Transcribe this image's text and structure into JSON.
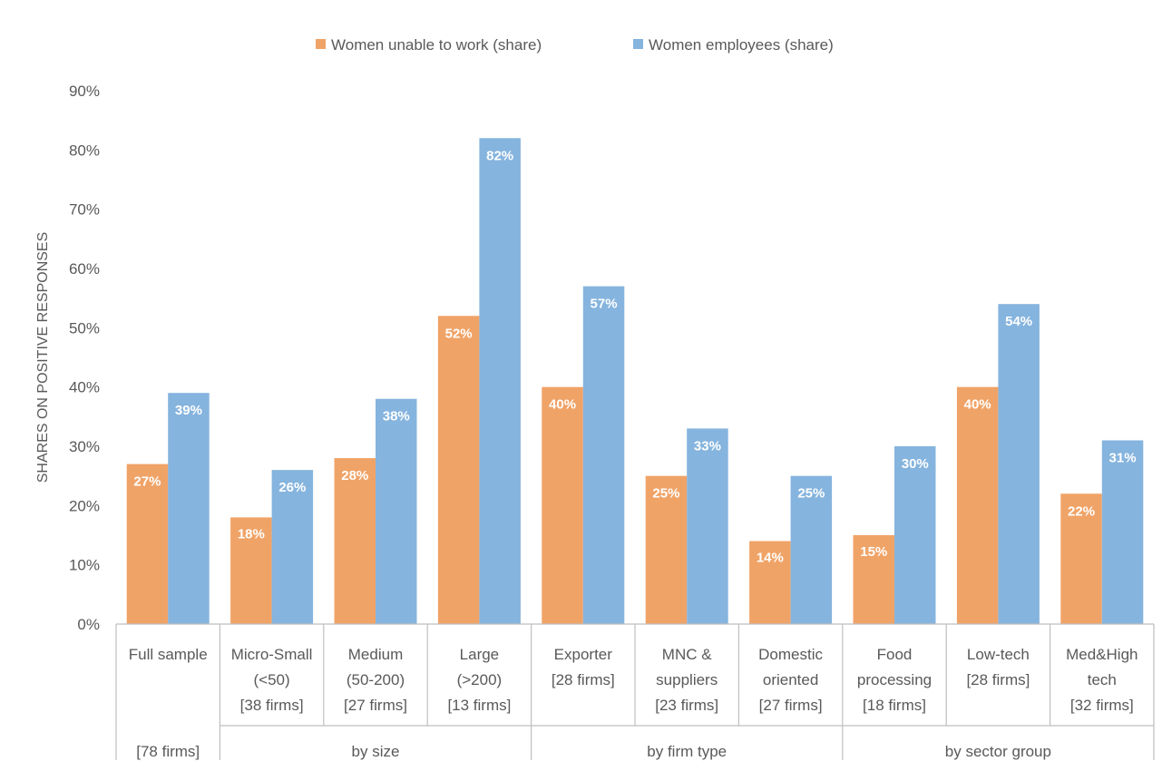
{
  "chart_data": {
    "type": "bar",
    "title": "",
    "ylabel": "SHARES ON POSITIVE RESPONSES",
    "xlabel": "",
    "ylim": [
      0,
      90
    ],
    "y_ticks": [
      "0%",
      "10%",
      "20%",
      "30%",
      "40%",
      "50%",
      "60%",
      "70%",
      "80%",
      "90%"
    ],
    "grid": false,
    "legend_position": "top",
    "categories": [
      [
        "Full sample",
        "",
        "",
        "[78 firms]"
      ],
      [
        "Micro-Small",
        "(<50)",
        "[38 firms]"
      ],
      [
        "Medium",
        "(50-200)",
        "[27 firms]"
      ],
      [
        "Large",
        "(>200)",
        "[13 firms]"
      ],
      [
        "Exporter",
        "[28 firms]"
      ],
      [
        "MNC &",
        "suppliers",
        "[23 firms]"
      ],
      [
        "Domestic",
        "oriented",
        "[27 firms]"
      ],
      [
        "Food",
        "processing",
        "[18 firms]"
      ],
      [
        "Low-tech",
        "[28 firms]"
      ],
      [
        "Med&High",
        "tech",
        "[32 firms]"
      ]
    ],
    "groups": [
      {
        "label": "",
        "start": 0,
        "end": 0
      },
      {
        "label": "by size",
        "start": 1,
        "end": 3
      },
      {
        "label": "by firm type",
        "start": 4,
        "end": 6
      },
      {
        "label": "by sector group",
        "start": 7,
        "end": 9
      }
    ],
    "series": [
      {
        "name": "Women unable to work (share)",
        "color": "#f0a367",
        "values": [
          27,
          18,
          28,
          52,
          40,
          25,
          14,
          15,
          40,
          22
        ],
        "labels": [
          "27%",
          "18%",
          "28%",
          "52%",
          "40%",
          "25%",
          "14%",
          "15%",
          "40%",
          "22%"
        ]
      },
      {
        "name": "Women employees (share)",
        "color": "#85b4de",
        "values": [
          39,
          26,
          38,
          82,
          57,
          33,
          25,
          30,
          54,
          31
        ],
        "labels": [
          "39%",
          "26%",
          "38%",
          "82%",
          "57%",
          "33%",
          "25%",
          "30%",
          "54%",
          "31%"
        ]
      }
    ]
  }
}
